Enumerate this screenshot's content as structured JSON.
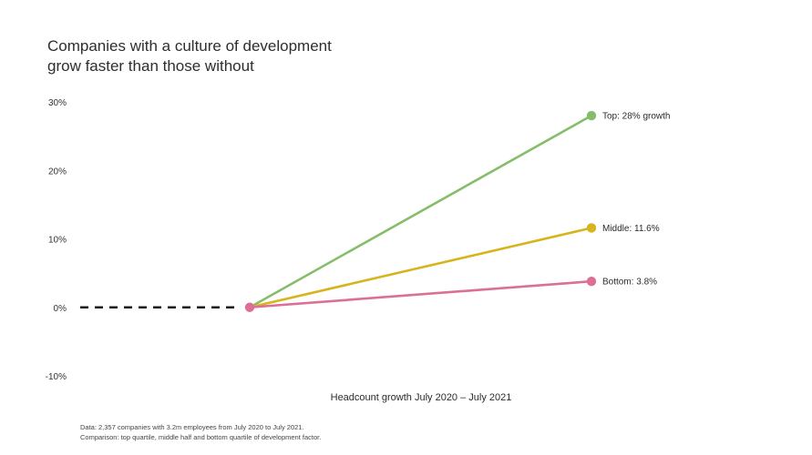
{
  "title": {
    "line1": "Companies with a culture of development",
    "line2": "grow faster than those without"
  },
  "footnote": {
    "line1": "Data: 2,357 companies with 3.2m employees from July 2020 to July 2021.",
    "line2": "Comparison: top quartile, middle half and bottom quartile of development factor."
  },
  "chart_data": {
    "type": "line",
    "title": "Companies with a culture of development grow faster than those without",
    "xlabel": "Headcount growth July 2020 – July 2021",
    "ylabel": "",
    "ylim": [
      -10,
      30
    ],
    "yticks": [
      30,
      20,
      10,
      0,
      -10
    ],
    "ytick_labels": [
      "30%",
      "20%",
      "10%",
      "0%",
      "-10%"
    ],
    "grid": false,
    "x": [
      "July 2020",
      "July 2021"
    ],
    "baseline": {
      "value": 0,
      "style": "dashed",
      "color": "#1a1a1a"
    },
    "series": [
      {
        "name": "Top",
        "values": [
          0,
          28
        ],
        "color": "#86bd6a",
        "label": "Top: 28% growth"
      },
      {
        "name": "Middle",
        "values": [
          0,
          11.6
        ],
        "color": "#d7b41c",
        "label": "Middle: 11.6%"
      },
      {
        "name": "Bottom",
        "values": [
          0,
          3.8
        ],
        "color": "#db6f96",
        "label": "Bottom: 3.8%"
      }
    ],
    "origin_marker_color": "#db6f96"
  }
}
